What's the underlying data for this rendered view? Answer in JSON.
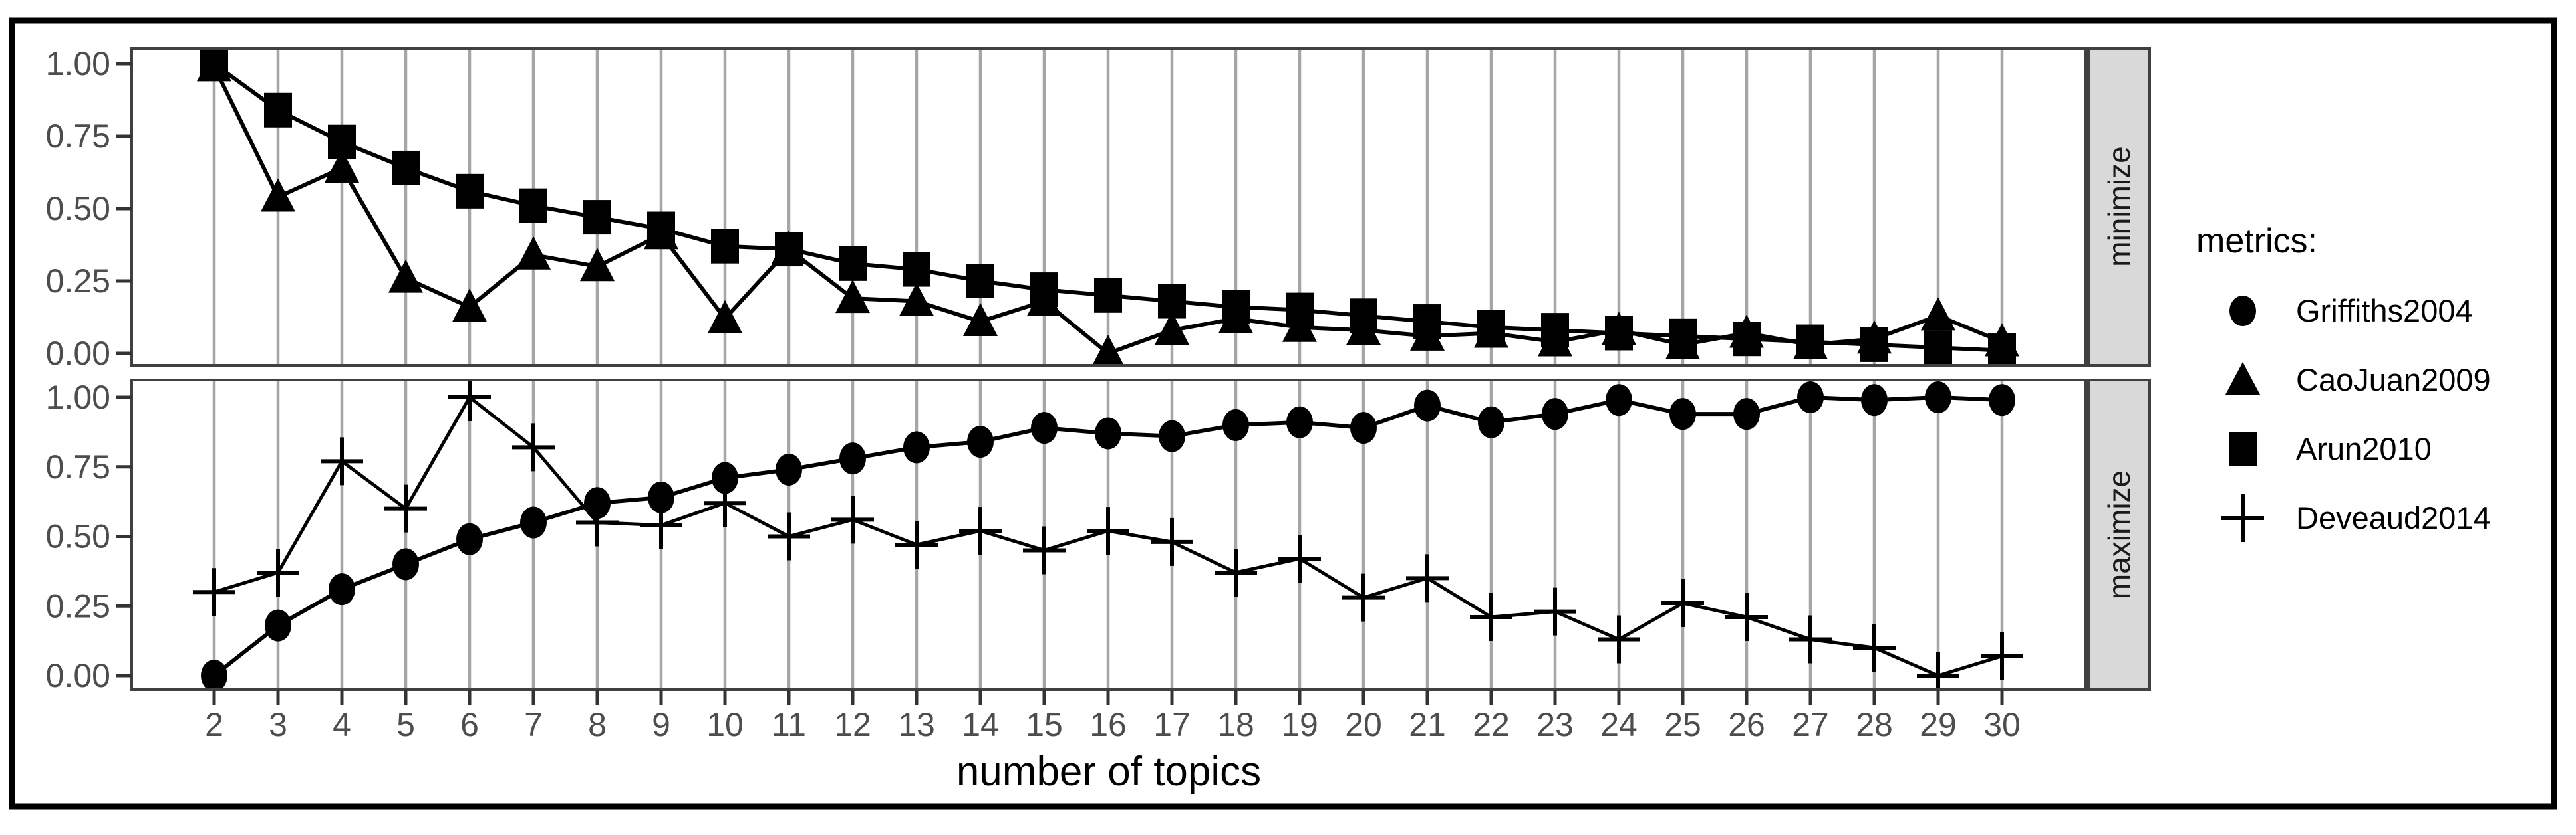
{
  "chart_data": {
    "type": "line",
    "title": "",
    "x": {
      "label": "number of topics",
      "values": [
        2,
        3,
        4,
        5,
        6,
        7,
        8,
        9,
        10,
        11,
        12,
        13,
        14,
        15,
        16,
        17,
        18,
        19,
        20,
        21,
        22,
        23,
        24,
        25,
        26,
        27,
        28,
        29,
        30
      ],
      "tick_labels": [
        "2",
        "3",
        "4",
        "5",
        "6",
        "7",
        "8",
        "9",
        "10",
        "11",
        "12",
        "13",
        "14",
        "15",
        "16",
        "17",
        "18",
        "19",
        "20",
        "21",
        "22",
        "23",
        "24",
        "25",
        "26",
        "27",
        "28",
        "29",
        "30"
      ]
    },
    "y": {
      "label": "",
      "range": [
        0,
        1
      ],
      "tick_values": [
        0,
        0.25,
        0.5,
        0.75,
        1
      ],
      "tick_labels": [
        "0.00",
        "0.25",
        "0.50",
        "0.75",
        "1.00"
      ]
    },
    "grid": "vertical-major-only",
    "facets": [
      {
        "id": "minimize",
        "strip": "minimize"
      },
      {
        "id": "maximize",
        "strip": "maximize"
      }
    ],
    "series": [
      {
        "name": "Griffiths2004",
        "facet": "maximize",
        "shape": "circle",
        "values": [
          0.0,
          0.18,
          0.31,
          0.4,
          0.49,
          0.55,
          0.62,
          0.64,
          0.71,
          0.74,
          0.78,
          0.82,
          0.84,
          0.89,
          0.87,
          0.86,
          0.9,
          0.91,
          0.89,
          0.97,
          0.91,
          0.94,
          0.99,
          0.94,
          0.94,
          1.0,
          0.99,
          1.0,
          0.99
        ]
      },
      {
        "name": "CaoJuan2009",
        "facet": "minimize",
        "shape": "triangle",
        "values": [
          0.99,
          0.54,
          0.64,
          0.26,
          0.16,
          0.34,
          0.3,
          0.41,
          0.12,
          0.36,
          0.19,
          0.18,
          0.11,
          0.18,
          0.0,
          0.08,
          0.12,
          0.09,
          0.08,
          0.06,
          0.07,
          0.04,
          0.08,
          0.03,
          0.07,
          0.03,
          0.05,
          0.13,
          0.04
        ]
      },
      {
        "name": "Arun2010",
        "facet": "minimize",
        "shape": "square",
        "values": [
          1.0,
          0.84,
          0.73,
          0.64,
          0.56,
          0.51,
          0.47,
          0.43,
          0.37,
          0.36,
          0.31,
          0.29,
          0.25,
          0.22,
          0.2,
          0.18,
          0.16,
          0.15,
          0.13,
          0.11,
          0.09,
          0.08,
          0.07,
          0.06,
          0.05,
          0.04,
          0.03,
          0.02,
          0.01
        ]
      },
      {
        "name": "Deveaud2014",
        "facet": "maximize",
        "shape": "plus",
        "values": [
          0.3,
          0.37,
          0.77,
          0.6,
          1.0,
          0.82,
          0.55,
          0.54,
          0.62,
          0.5,
          0.56,
          0.47,
          0.52,
          0.45,
          0.52,
          0.48,
          0.37,
          0.42,
          0.28,
          0.35,
          0.21,
          0.23,
          0.13,
          0.26,
          0.21,
          0.13,
          0.1,
          0.0,
          0.07
        ]
      }
    ],
    "legend": {
      "title": "metrics:",
      "position": "right",
      "items": [
        {
          "label": "Griffiths2004",
          "shape": "circle"
        },
        {
          "label": "CaoJuan2009",
          "shape": "triangle"
        },
        {
          "label": "Arun2010",
          "shape": "square"
        },
        {
          "label": "Deveaud2014",
          "shape": "plus"
        }
      ]
    },
    "colors": {
      "series": "#000000",
      "grid": "#a6a6a6",
      "panel_border": "#404040",
      "tick_mark": "#333333",
      "tick_label": "#4d4d4d",
      "axis_title": "#000000",
      "strip_fill": "#d9d9d9",
      "strip_text": "#1a1a1a",
      "outer_border": "#000000",
      "panel_fill": "#ffffff"
    }
  }
}
